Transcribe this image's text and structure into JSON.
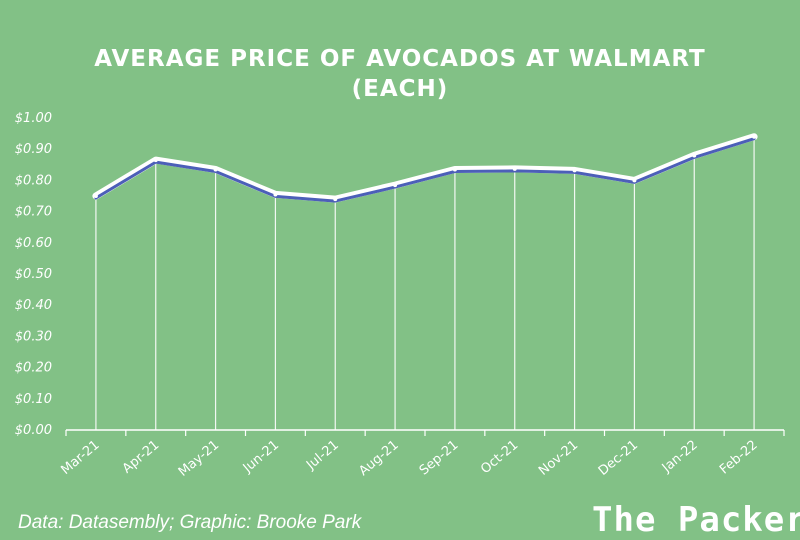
{
  "chart_data": {
    "type": "line",
    "title": "AVERAGE PRICE OF AVOCADOS AT WALMART (EACH)",
    "title_lines": [
      "AVERAGE PRICE OF AVOCADOS AT WALMART",
      "(EACH)"
    ],
    "categories": [
      "Mar-21",
      "Apr-21",
      "May-21",
      "Jun-21",
      "Jul-21",
      "Aug-21",
      "Sep-21",
      "Oct-21",
      "Nov-21",
      "Dec-21",
      "Jan-22",
      "Feb-22"
    ],
    "series": [
      {
        "values": [
          0.75,
          0.865,
          0.835,
          0.755,
          0.74,
          0.785,
          0.835,
          0.837,
          0.832,
          0.8,
          0.88,
          0.94
        ]
      }
    ],
    "y_ticks": [
      "$0.00",
      "$0.10",
      "$0.20",
      "$0.30",
      "$0.40",
      "$0.50",
      "$0.60",
      "$0.70",
      "$0.80",
      "$0.90",
      "$1.00"
    ],
    "ylim": [
      0,
      1.0
    ],
    "xlabel": "",
    "ylabel": "",
    "grid": false,
    "drop_lines": true,
    "colors": {
      "background": "#82c186",
      "line": "#4c5fb8",
      "line_outline": "#ffffff",
      "text": "#ffffff"
    }
  },
  "footer": {
    "source": "Data: Datasembly; Graphic: Brooke Park",
    "logo": "The Packer"
  }
}
